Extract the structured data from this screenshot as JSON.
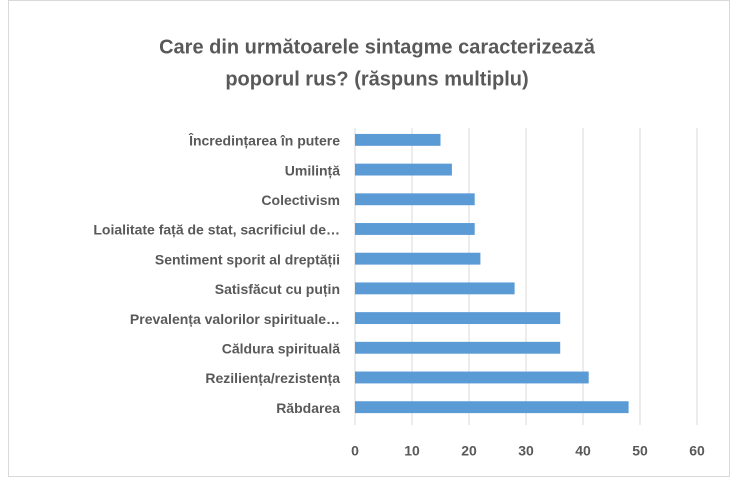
{
  "chart_data": {
    "type": "bar",
    "orientation": "horizontal",
    "title": [
      "Care din următoarele sintagme caracterizează",
      "poporul rus? (răspuns multiplu)"
    ],
    "categories": [
      "Încredințarea în putere",
      "Umilință",
      "Colectivism",
      "Loialitate față de stat, sacrificiul de…",
      "Sentiment sporit al dreptății",
      "Satisfăcut cu puțin",
      "Prevalența valorilor spirituale…",
      "Căldura spirituală",
      "Reziliența/rezistența",
      "Răbdarea"
    ],
    "values": [
      15,
      17,
      21,
      21,
      22,
      28,
      36,
      36,
      41,
      48
    ],
    "color": "#5b9bd5",
    "xlim": [
      0,
      60
    ],
    "xticks": [
      0,
      10,
      20,
      30,
      40,
      50,
      60
    ],
    "grid": true
  }
}
